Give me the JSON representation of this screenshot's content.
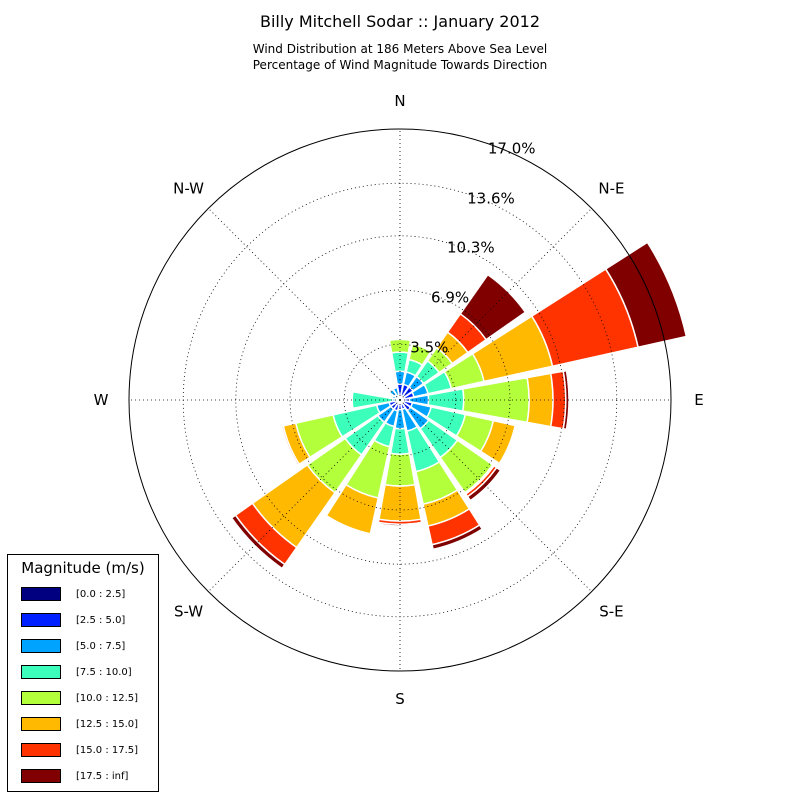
{
  "title": "Billy Mitchell Sodar :: January 2012",
  "subtitle_lines": [
    "Wind Distribution at 186 Meters Above Sea Level",
    "Percentage of Wind Magnitude Towards Direction"
  ],
  "chart_data": {
    "type": "windrose",
    "title": "Billy Mitchell Sodar :: January 2012",
    "subtitle": [
      "Wind Distribution at 186 Meters Above Sea Level",
      "Percentage of Wind Magnitude Towards Direction"
    ],
    "units": "%",
    "r_max": 17.0,
    "r_ticks": [
      3.5,
      6.9,
      10.3,
      13.6,
      17.0
    ],
    "r_tick_labels": [
      "3.5%",
      "6.9%",
      "10.3%",
      "13.6%",
      "17.0%"
    ],
    "directions": [
      "N",
      "N-E",
      "E",
      "S-E",
      "S",
      "S-W",
      "W",
      "N-W"
    ],
    "direction_angles": [
      0,
      45,
      90,
      135,
      180,
      225,
      270,
      315
    ],
    "sector_centers_deg": [
      0,
      22.5,
      45,
      67.5,
      90,
      112.5,
      135,
      157.5,
      180,
      202.5,
      225,
      247.5,
      270,
      292.5,
      315,
      337.5
    ],
    "bins": [
      "[0.0 : 2.5]",
      "[2.5 : 5.0]",
      "[5.0 : 7.5]",
      "[7.5 : 10.0]",
      "[10.0 : 12.5]",
      "[12.5 : 15.0]",
      "[15.0 : 17.5]",
      "[17.5 : inf]"
    ],
    "bin_colors": [
      "#000080",
      "#0020ff",
      "#00a4ff",
      "#3cffbb",
      "#b4ff3b",
      "#ffb900",
      "#ff3300",
      "#800000"
    ],
    "legend_title": "Magnitude (m/s)",
    "legend_position": "lower-left",
    "grid": true,
    "cumulative": [
      [
        0.2,
        1.0,
        1.8,
        3.0,
        3.8,
        3.8,
        3.8,
        3.8
      ],
      [
        0.2,
        1.0,
        1.8,
        2.6,
        3.6,
        3.6,
        3.6,
        3.6
      ],
      [
        0.3,
        1.0,
        1.8,
        3.0,
        4.0,
        5.2,
        6.6,
        9.6
      ],
      [
        0.3,
        0.9,
        1.8,
        3.3,
        5.4,
        9.8,
        15.3,
        18.4
      ],
      [
        0.2,
        0.6,
        1.8,
        4.0,
        8.1,
        9.6,
        10.4,
        10.6
      ],
      [
        0.2,
        0.8,
        2.0,
        4.2,
        6.0,
        7.4,
        7.4,
        7.4
      ],
      [
        0.2,
        0.8,
        2.2,
        4.4,
        7.1,
        7.2,
        7.4,
        7.7
      ],
      [
        0.1,
        0.6,
        2.0,
        4.6,
        6.7,
        8.1,
        9.3,
        9.6
      ],
      [
        0.1,
        0.6,
        1.8,
        3.4,
        5.4,
        7.6,
        7.8,
        7.9
      ],
      [
        0.1,
        0.7,
        1.7,
        3.0,
        6.3,
        8.6,
        8.6,
        8.6
      ],
      [
        0.1,
        0.7,
        1.7,
        4.2,
        7.1,
        11.3,
        12.6,
        12.9
      ],
      [
        0.1,
        0.7,
        1.5,
        4.3,
        6.7,
        7.5,
        7.6,
        7.6
      ],
      [
        0.1,
        0.2,
        0.5,
        3.0,
        3.0,
        3.0,
        3.0,
        3.0
      ],
      [
        0.1,
        0.3,
        0.5,
        0.6,
        0.6,
        0.6,
        0.6,
        0.6
      ],
      [
        0.1,
        0.4,
        0.8,
        0.8,
        0.8,
        0.8,
        0.8,
        0.8
      ],
      [
        0.1,
        0.3,
        0.8,
        0.8,
        0.8,
        0.8,
        0.8,
        0.8
      ]
    ]
  }
}
